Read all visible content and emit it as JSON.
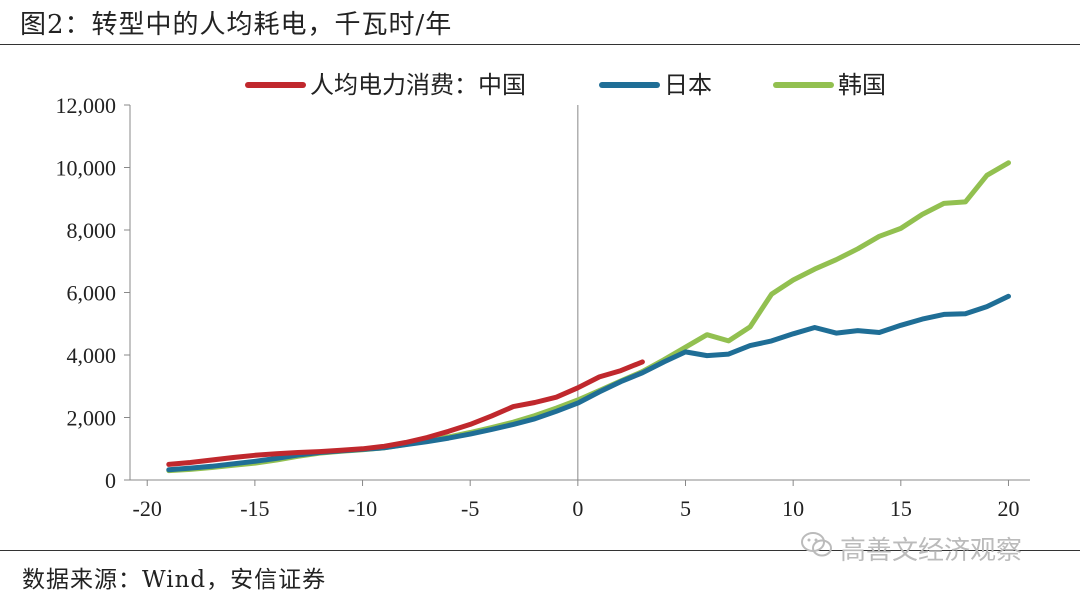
{
  "figure": {
    "title": "图2：转型中的人均耗电，千瓦时/年",
    "source": "数据来源：Wind，安信证券",
    "watermark": "高善文经济观察",
    "watermark_icon": "wechat-icon"
  },
  "chart_data": {
    "type": "line",
    "title": "图2：转型中的人均耗电，千瓦时/年",
    "xlabel": "",
    "ylabel": "",
    "xlim": [
      -20.8,
      21
    ],
    "ylim": [
      0,
      12000
    ],
    "xticks": [
      -20,
      -15,
      -10,
      -5,
      0,
      5,
      10,
      15,
      20
    ],
    "xtick_labels": [
      "-20",
      "-15",
      "-10",
      "-5",
      "0",
      "5",
      "10",
      "15",
      "20"
    ],
    "yticks": [
      0,
      2000,
      4000,
      6000,
      8000,
      10000,
      12000
    ],
    "ytick_labels": [
      "0",
      "2,000",
      "4,000",
      "6,000",
      "8,000",
      "10,000",
      "12,000"
    ],
    "grid": false,
    "legend_position": "top",
    "series": [
      {
        "name": "人均电力消费：中国",
        "color": "#c0282d",
        "points": [
          [
            -19,
            500
          ],
          [
            -18,
            560
          ],
          [
            -17,
            640
          ],
          [
            -16,
            720
          ],
          [
            -15,
            790
          ],
          [
            -14,
            840
          ],
          [
            -13,
            880
          ],
          [
            -12,
            910
          ],
          [
            -11,
            950
          ],
          [
            -10,
            1000
          ],
          [
            -9,
            1080
          ],
          [
            -8,
            1200
          ],
          [
            -7,
            1360
          ],
          [
            -6,
            1560
          ],
          [
            -5,
            1780
          ],
          [
            -4,
            2050
          ],
          [
            -3,
            2350
          ],
          [
            -2,
            2480
          ],
          [
            -1,
            2650
          ],
          [
            0,
            2950
          ],
          [
            1,
            3300
          ],
          [
            2,
            3500
          ],
          [
            3,
            3780
          ]
        ]
      },
      {
        "name": "日本",
        "color": "#1f6e96",
        "points": [
          [
            -19,
            330
          ],
          [
            -18,
            380
          ],
          [
            -17,
            440
          ],
          [
            -16,
            520
          ],
          [
            -15,
            600
          ],
          [
            -14,
            690
          ],
          [
            -13,
            800
          ],
          [
            -12,
            880
          ],
          [
            -11,
            930
          ],
          [
            -10,
            980
          ],
          [
            -9,
            1030
          ],
          [
            -8,
            1130
          ],
          [
            -7,
            1230
          ],
          [
            -6,
            1340
          ],
          [
            -5,
            1470
          ],
          [
            -4,
            1620
          ],
          [
            -3,
            1780
          ],
          [
            -2,
            1960
          ],
          [
            -1,
            2200
          ],
          [
            0,
            2460
          ],
          [
            1,
            2820
          ],
          [
            2,
            3150
          ],
          [
            3,
            3430
          ],
          [
            4,
            3780
          ],
          [
            5,
            4100
          ],
          [
            6,
            3980
          ],
          [
            7,
            4030
          ],
          [
            8,
            4300
          ],
          [
            9,
            4450
          ],
          [
            10,
            4680
          ],
          [
            11,
            4880
          ],
          [
            12,
            4700
          ],
          [
            13,
            4780
          ],
          [
            14,
            4720
          ],
          [
            15,
            4950
          ],
          [
            16,
            5150
          ],
          [
            17,
            5300
          ],
          [
            18,
            5320
          ],
          [
            19,
            5550
          ],
          [
            20,
            5880
          ]
        ]
      },
      {
        "name": "韩国",
        "color": "#92c050",
        "points": [
          [
            -19,
            300
          ],
          [
            -18,
            340
          ],
          [
            -17,
            400
          ],
          [
            -16,
            470
          ],
          [
            -15,
            540
          ],
          [
            -14,
            640
          ],
          [
            -13,
            760
          ],
          [
            -12,
            860
          ],
          [
            -11,
            920
          ],
          [
            -10,
            970
          ],
          [
            -9,
            1030
          ],
          [
            -8,
            1140
          ],
          [
            -7,
            1260
          ],
          [
            -6,
            1380
          ],
          [
            -5,
            1520
          ],
          [
            -4,
            1680
          ],
          [
            -3,
            1850
          ],
          [
            -2,
            2060
          ],
          [
            -1,
            2300
          ],
          [
            0,
            2560
          ],
          [
            1,
            2860
          ],
          [
            2,
            3170
          ],
          [
            3,
            3470
          ],
          [
            4,
            3850
          ],
          [
            5,
            4250
          ],
          [
            6,
            4650
          ],
          [
            7,
            4450
          ],
          [
            8,
            4900
          ],
          [
            9,
            5950
          ],
          [
            10,
            6400
          ],
          [
            11,
            6750
          ],
          [
            12,
            7050
          ],
          [
            13,
            7400
          ],
          [
            14,
            7800
          ],
          [
            15,
            8050
          ],
          [
            16,
            8500
          ],
          [
            17,
            8850
          ],
          [
            18,
            8900
          ],
          [
            19,
            9750
          ],
          [
            20,
            10150
          ]
        ]
      }
    ]
  }
}
